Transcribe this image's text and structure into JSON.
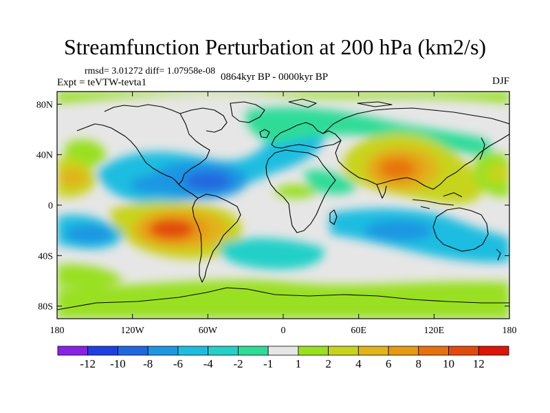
{
  "title": "Streamfunction Perturbation at 200 hPa (km2/s)",
  "stats_line": "rmsd= 3.01272 diff= 1.07958e-08",
  "experiment": "Expt = teVTW-tevta1",
  "period": "0864kyr BP - 0000kyr BP",
  "season": "DJF",
  "map": {
    "projection": "cylindrical equidistant",
    "lon_range": [
      -180,
      180
    ],
    "lat_range": [
      -90,
      90
    ],
    "lat_ticks": [
      {
        "value": 80,
        "label": "80N"
      },
      {
        "value": 40,
        "label": "40N"
      },
      {
        "value": 0,
        "label": "0"
      },
      {
        "value": -40,
        "label": "40S"
      },
      {
        "value": -80,
        "label": "80S"
      }
    ],
    "lon_ticks": [
      {
        "value": -180,
        "label": "180"
      },
      {
        "value": -120,
        "label": "120W"
      },
      {
        "value": -60,
        "label": "60W"
      },
      {
        "value": 0,
        "label": "0"
      },
      {
        "value": 60,
        "label": "60E"
      },
      {
        "value": 120,
        "label": "120E"
      },
      {
        "value": 180,
        "label": "180"
      }
    ]
  },
  "colorbar": {
    "colors": [
      "#8a22e6",
      "#1f40e0",
      "#2168e0",
      "#1f96e2",
      "#1ebde0",
      "#24d0c8",
      "#2edc98",
      "#e6e6e6",
      "#99e022",
      "#c7d41e",
      "#e1b41a",
      "#e69a14",
      "#e6720f",
      "#e24a0b",
      "#dc1508"
    ],
    "labels": [
      "-12",
      "-10",
      "-8",
      "-6",
      "-4",
      "-2",
      "-1",
      "1",
      "2",
      "4",
      "6",
      "8",
      "10",
      "12"
    ]
  }
}
